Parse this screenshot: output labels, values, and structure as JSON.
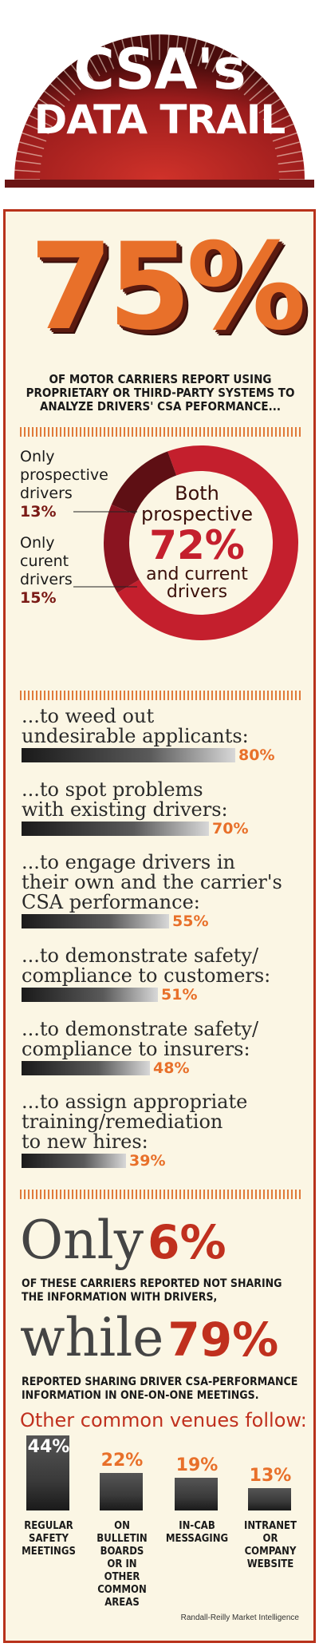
{
  "header": {
    "line1": "CSA's",
    "line2": "DATA TRAIL"
  },
  "hero": {
    "stat": "75%",
    "text": "OF MOTOR CARRIERS REPORT USING PROPRIETARY OR THIRD-PARTY SYSTEMS TO ANALYZE DRIVERS' CSA PEFORMANCE..."
  },
  "donut": {
    "only_prospective": {
      "label": "Only\nprospective\ndrivers",
      "pct": "13%"
    },
    "only_current": {
      "label": "Only\ncurent\ndrivers",
      "pct": "15%"
    },
    "both": {
      "line1": "Both",
      "line2": "prospective",
      "pct": "72%",
      "line3": "and current",
      "line4": "drivers"
    }
  },
  "reasons": [
    {
      "text": "...to weed out\nundesirable applicants:",
      "label": "80%"
    },
    {
      "text": "...to spot problems\nwith existing drivers:",
      "label": "70%"
    },
    {
      "text": "...to engage drivers in\ntheir own and the carrier's\nCSA performance:",
      "label": "55%"
    },
    {
      "text": "...to demonstrate safety/\ncompliance to customers:",
      "label": "51%"
    },
    {
      "text": "...to demonstrate safety/\ncompliance to insurers:",
      "label": "48%"
    },
    {
      "text": "...to assign appropriate\ntraining/remediation\nto new hires:",
      "label": "39%"
    }
  ],
  "sharing": {
    "only_word": "Only",
    "only_pct": "6%",
    "only_text": "OF THESE CARRIERS REPORTED NOT SHARING THE INFORMATION WITH DRIVERS,",
    "while_word": "while",
    "while_pct": "79%",
    "while_text": "REPORTED SHARING DRIVER CSA-PERFORMANCE INFORMATION IN ONE-ON-ONE MEETINGS."
  },
  "venues": {
    "heading": "Other common venues follow:",
    "items": [
      {
        "label": "REGULAR\nSAFETY\nMEETINGS",
        "pct": "44%"
      },
      {
        "label": "ON\nBULLETIN\nBOARDS\nOR IN\nOTHER\nCOMMON\nAREAS",
        "pct": "22%"
      },
      {
        "label": "IN-CAB\nMESSAGING",
        "pct": "19%"
      },
      {
        "label": "INTRANET\nOR\nCOMPANY\nWEBSITE",
        "pct": "13%"
      }
    ]
  },
  "source": "Randall-Reilly Market Intelligence",
  "colors": {
    "accent": "#e8702a",
    "dark_red": "#7a1a15",
    "red": "#c0301e",
    "cream": "#fbf6e4"
  },
  "chart_data": [
    {
      "type": "pie",
      "categories": [
        "Only prospective drivers",
        "Only curent drivers",
        "Both prospective and current drivers"
      ],
      "values": [
        13,
        15,
        72
      ]
    },
    {
      "type": "bar",
      "categories": [
        "...to weed out undesirable applicants:",
        "...to spot problems with existing drivers:",
        "...to engage drivers in their own and the carrier's CSA performance:",
        "...to demonstrate safety/ compliance to customers:",
        "...to demonstrate safety/ compliance to insurers:",
        "...to assign appropriate training/remediation to new hires:"
      ],
      "values": [
        80,
        70,
        55,
        51,
        48,
        39
      ]
    },
    {
      "type": "bar",
      "categories": [
        "REGULAR SAFETY MEETINGS",
        "ON BULLETIN BOARDS OR IN OTHER COMMON AREAS",
        "IN-CAB MESSAGING",
        "INTRANET OR COMPANY WEBSITE"
      ],
      "values": [
        44,
        22,
        19,
        13
      ]
    }
  ]
}
